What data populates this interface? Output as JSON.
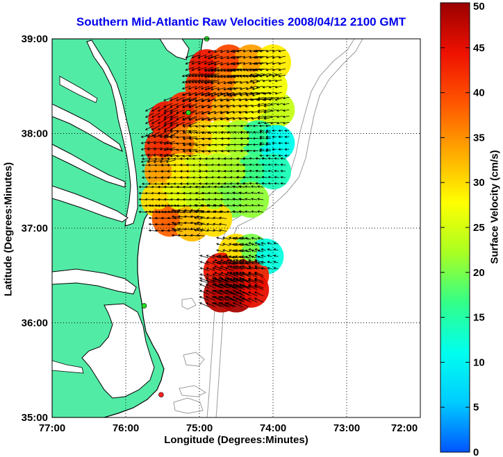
{
  "title": "Southern Mid-Atlantic Raw Velocities 2008/04/12 2100 GMT",
  "colors": {
    "land": "#52eba6",
    "coast": "#000000",
    "bathymetry": "#9a9a9a",
    "station": "#22dd22",
    "station_highlight": "#ff2222",
    "grid": "#000000"
  },
  "map": {
    "type": "map",
    "xlabel": "Longitude (Degrees:Minutes)",
    "ylabel": "Latitude (Degrees:Minutes)",
    "xlim": [
      -77,
      -72
    ],
    "ylim": [
      35,
      39
    ],
    "x_ticks": [
      {
        "value": -77,
        "label": "77:00"
      },
      {
        "value": -76,
        "label": "76:00"
      },
      {
        "value": -75,
        "label": "75:00"
      },
      {
        "value": -74,
        "label": "74:00"
      },
      {
        "value": -73,
        "label": "73:00"
      },
      {
        "value": -72,
        "label": "72:00"
      }
    ],
    "y_ticks": [
      {
        "value": 39,
        "label": "39:00"
      },
      {
        "value": 38,
        "label": "38:00"
      },
      {
        "value": 37,
        "label": "37:00"
      },
      {
        "value": 36,
        "label": "36:00"
      },
      {
        "value": 35,
        "label": "35:00"
      }
    ],
    "grid": "dotted"
  },
  "colorbar": {
    "label": "Surface Velocity (cm/s)",
    "range": [
      0,
      50
    ],
    "ticks": [
      {
        "value": 50,
        "label": "50"
      },
      {
        "value": 45,
        "label": "45"
      },
      {
        "value": 40,
        "label": "40"
      },
      {
        "value": 35,
        "label": "35"
      },
      {
        "value": 30,
        "label": "30"
      },
      {
        "value": 25,
        "label": "25"
      },
      {
        "value": 20,
        "label": "20"
      },
      {
        "value": 15,
        "label": "15"
      },
      {
        "value": 10,
        "label": "10"
      },
      {
        "value": 5,
        "label": "5"
      },
      {
        "value": 0,
        "label": "0"
      }
    ],
    "colormap": [
      "#0055ff",
      "#00ccff",
      "#00ffee",
      "#33ff88",
      "#aaff22",
      "#ffff00",
      "#ffaa00",
      "#ff5500",
      "#ee1100",
      "#990000"
    ]
  },
  "stations": [
    {
      "lon": -74.9,
      "lat": 39.0,
      "kind": "station"
    },
    {
      "lon": -75.15,
      "lat": 38.22,
      "kind": "station"
    },
    {
      "lon": -75.75,
      "lat": 36.18,
      "kind": "station"
    },
    {
      "lon": -75.52,
      "lat": 35.24,
      "kind": "station_highlight"
    }
  ],
  "velocity_field": [
    {
      "lon": -75.45,
      "lat": 38.15,
      "speed": 44,
      "u": -0.85,
      "v": -0.45
    },
    {
      "lon": -75.2,
      "lat": 38.25,
      "speed": 42,
      "u": -0.9,
      "v": -0.35
    },
    {
      "lon": -74.95,
      "lat": 38.3,
      "speed": 38,
      "u": -0.9,
      "v": -0.3
    },
    {
      "lon": -74.7,
      "lat": 38.3,
      "speed": 33,
      "u": -0.92,
      "v": -0.25
    },
    {
      "lon": -74.45,
      "lat": 38.3,
      "speed": 30,
      "u": -0.95,
      "v": -0.2
    },
    {
      "lon": -74.2,
      "lat": 38.3,
      "speed": 28,
      "u": -0.95,
      "v": -0.18
    },
    {
      "lon": -73.95,
      "lat": 38.25,
      "speed": 24,
      "u": -0.95,
      "v": -0.15
    },
    {
      "lon": -74.9,
      "lat": 38.7,
      "speed": 44,
      "u": -0.9,
      "v": -0.3
    },
    {
      "lon": -74.6,
      "lat": 38.75,
      "speed": 40,
      "u": -0.92,
      "v": -0.25
    },
    {
      "lon": -74.3,
      "lat": 38.75,
      "speed": 34,
      "u": -0.95,
      "v": -0.2
    },
    {
      "lon": -74.0,
      "lat": 38.75,
      "speed": 29,
      "u": -0.95,
      "v": -0.2
    },
    {
      "lon": -74.95,
      "lat": 38.5,
      "speed": 41,
      "u": -0.9,
      "v": -0.3
    },
    {
      "lon": -74.65,
      "lat": 38.55,
      "speed": 36,
      "u": -0.92,
      "v": -0.25
    },
    {
      "lon": -74.35,
      "lat": 38.55,
      "speed": 31,
      "u": -0.95,
      "v": -0.2
    },
    {
      "lon": -74.05,
      "lat": 38.5,
      "speed": 27,
      "u": -0.95,
      "v": -0.18
    },
    {
      "lon": -75.5,
      "lat": 37.85,
      "speed": 42,
      "u": -0.95,
      "v": -0.2
    },
    {
      "lon": -75.2,
      "lat": 37.9,
      "speed": 36,
      "u": -0.97,
      "v": -0.1
    },
    {
      "lon": -74.95,
      "lat": 37.95,
      "speed": 31,
      "u": -0.98,
      "v": -0.1
    },
    {
      "lon": -74.7,
      "lat": 37.95,
      "speed": 26,
      "u": -0.98,
      "v": -0.08
    },
    {
      "lon": -74.45,
      "lat": 37.95,
      "speed": 22,
      "u": -0.98,
      "v": -0.05
    },
    {
      "lon": -74.2,
      "lat": 37.95,
      "speed": 16,
      "u": -0.98,
      "v": -0.05
    },
    {
      "lon": -73.95,
      "lat": 37.9,
      "speed": 11,
      "u": -0.98,
      "v": -0.05
    },
    {
      "lon": -75.5,
      "lat": 37.6,
      "speed": 34,
      "u": -0.99,
      "v": 0.0
    },
    {
      "lon": -75.25,
      "lat": 37.6,
      "speed": 29,
      "u": -0.99,
      "v": 0.02
    },
    {
      "lon": -75.0,
      "lat": 37.6,
      "speed": 25,
      "u": -0.99,
      "v": 0.02
    },
    {
      "lon": -74.75,
      "lat": 37.6,
      "speed": 23,
      "u": -0.99,
      "v": 0.05
    },
    {
      "lon": -74.5,
      "lat": 37.6,
      "speed": 22,
      "u": -0.99,
      "v": 0.05
    },
    {
      "lon": -74.25,
      "lat": 37.6,
      "speed": 17,
      "u": -0.98,
      "v": 0.1
    },
    {
      "lon": -74.0,
      "lat": 37.6,
      "speed": 14,
      "u": -0.98,
      "v": 0.1
    },
    {
      "lon": -75.55,
      "lat": 37.3,
      "speed": 30,
      "u": -0.99,
      "v": 0.05
    },
    {
      "lon": -75.3,
      "lat": 37.3,
      "speed": 26,
      "u": -0.99,
      "v": 0.05
    },
    {
      "lon": -75.05,
      "lat": 37.3,
      "speed": 24,
      "u": -0.99,
      "v": 0.05
    },
    {
      "lon": -74.8,
      "lat": 37.3,
      "speed": 22,
      "u": -0.98,
      "v": 0.1
    },
    {
      "lon": -74.55,
      "lat": 37.3,
      "speed": 20,
      "u": -0.98,
      "v": 0.1
    },
    {
      "lon": -74.3,
      "lat": 37.3,
      "speed": 21,
      "u": -0.97,
      "v": 0.15
    },
    {
      "lon": -75.4,
      "lat": 37.1,
      "speed": 38,
      "u": -0.98,
      "v": 0.1
    },
    {
      "lon": -75.1,
      "lat": 37.05,
      "speed": 32,
      "u": -0.98,
      "v": 0.1
    },
    {
      "lon": -74.8,
      "lat": 37.1,
      "speed": 30,
      "u": -0.97,
      "v": 0.15
    },
    {
      "lon": -74.5,
      "lat": 36.75,
      "speed": 30,
      "u": -0.95,
      "v": 0.25
    },
    {
      "lon": -74.3,
      "lat": 36.75,
      "speed": 20,
      "u": -0.95,
      "v": 0.25
    },
    {
      "lon": -74.1,
      "lat": 36.7,
      "speed": 12,
      "u": -0.95,
      "v": 0.25
    },
    {
      "lon": -74.7,
      "lat": 36.55,
      "speed": 44,
      "u": -0.92,
      "v": 0.3
    },
    {
      "lon": -74.5,
      "lat": 36.5,
      "speed": 46,
      "u": -0.92,
      "v": 0.3
    },
    {
      "lon": -74.3,
      "lat": 36.5,
      "speed": 43,
      "u": -0.92,
      "v": 0.35
    },
    {
      "lon": -74.7,
      "lat": 36.3,
      "speed": 48,
      "u": -0.9,
      "v": 0.4
    },
    {
      "lon": -74.5,
      "lat": 36.3,
      "speed": 49,
      "u": -0.9,
      "v": 0.4
    },
    {
      "lon": -74.3,
      "lat": 36.35,
      "speed": 45,
      "u": -0.9,
      "v": 0.4
    }
  ]
}
